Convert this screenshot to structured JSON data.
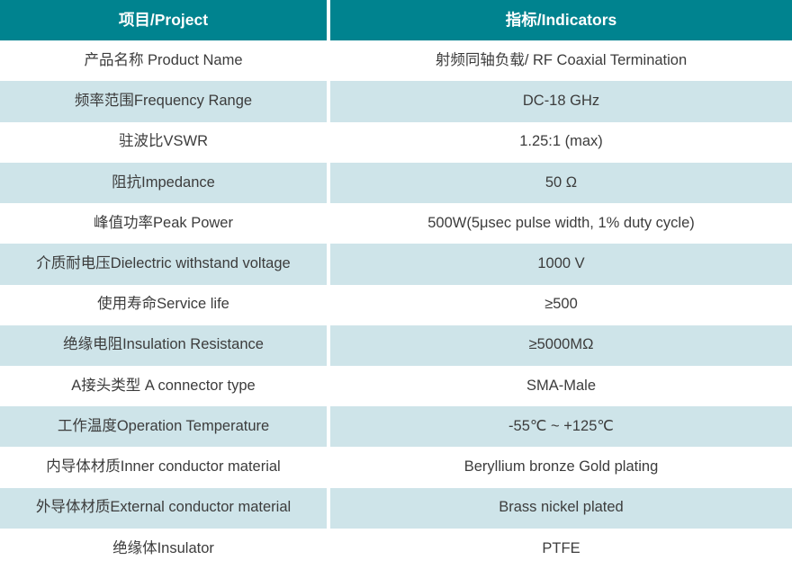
{
  "colors": {
    "header_bg": "#00838f",
    "header_text": "#ffffff",
    "alt_row_bg": "#cee4e9",
    "row_bg": "#ffffff",
    "body_text": "#3c3c3c"
  },
  "table": {
    "header": {
      "project": "项目/Project",
      "indicators": "指标/Indicators"
    },
    "rows": [
      {
        "project": "产品名称 Product Name",
        "indicator": "射频同轴负载/ RF Coaxial Termination"
      },
      {
        "project": "频率范围Frequency Range",
        "indicator": "DC-18 GHz"
      },
      {
        "project": "驻波比VSWR",
        "indicator": "1.25:1 (max)"
      },
      {
        "project": "阻抗Impedance",
        "indicator": "50 Ω"
      },
      {
        "project": "峰值功率Peak Power",
        "indicator": "500W(5μsec pulse width, 1% duty cycle)"
      },
      {
        "project": "介质耐电压Dielectric withstand voltage",
        "indicator": "1000 V"
      },
      {
        "project": "使用寿命Service life",
        "indicator": "≥500"
      },
      {
        "project": "绝缘电阻Insulation Resistance",
        "indicator": "≥5000MΩ"
      },
      {
        "project": "A接头类型 A connector type",
        "indicator": "SMA-Male"
      },
      {
        "project": "工作温度Operation Temperature",
        "indicator": "-55℃ ~ +125℃"
      },
      {
        "project": "内导体材质Inner conductor material",
        "indicator": "Beryllium bronze Gold plating"
      },
      {
        "project": "外导体材质External conductor material",
        "indicator": "Brass nickel plated"
      },
      {
        "project": "绝缘体Insulator",
        "indicator": "PTFE"
      }
    ]
  }
}
